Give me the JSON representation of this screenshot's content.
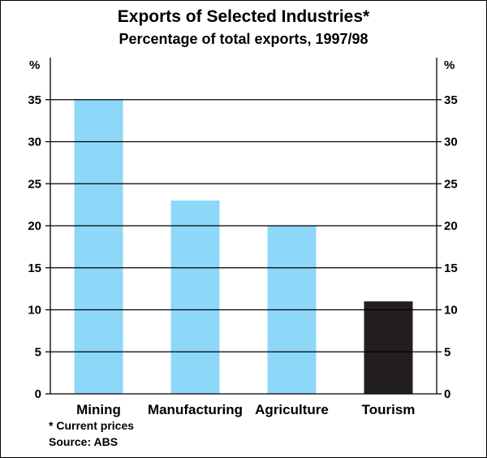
{
  "title": "Exports of Selected Industries*",
  "subtitle": "Percentage of total exports, 1997/98",
  "footnote": "*  Current prices",
  "source": "Source: ABS",
  "chart_data": {
    "type": "bar",
    "title": "Exports of Selected Industries*",
    "subtitle": "Percentage of total exports, 1997/98",
    "categories": [
      "Mining",
      "Manufacturing",
      "Agriculture",
      "Tourism"
    ],
    "values": [
      35,
      23,
      20,
      11
    ],
    "colors": [
      "#8dd8f8",
      "#8dd8f8",
      "#8dd8f8",
      "#231f20"
    ],
    "unit_left": "%",
    "unit_right": "%",
    "yticks": [
      0,
      5,
      10,
      15,
      20,
      25,
      30,
      35
    ],
    "ylim": [
      0,
      40
    ],
    "grid": true,
    "xlabel": "",
    "ylabel": ""
  }
}
